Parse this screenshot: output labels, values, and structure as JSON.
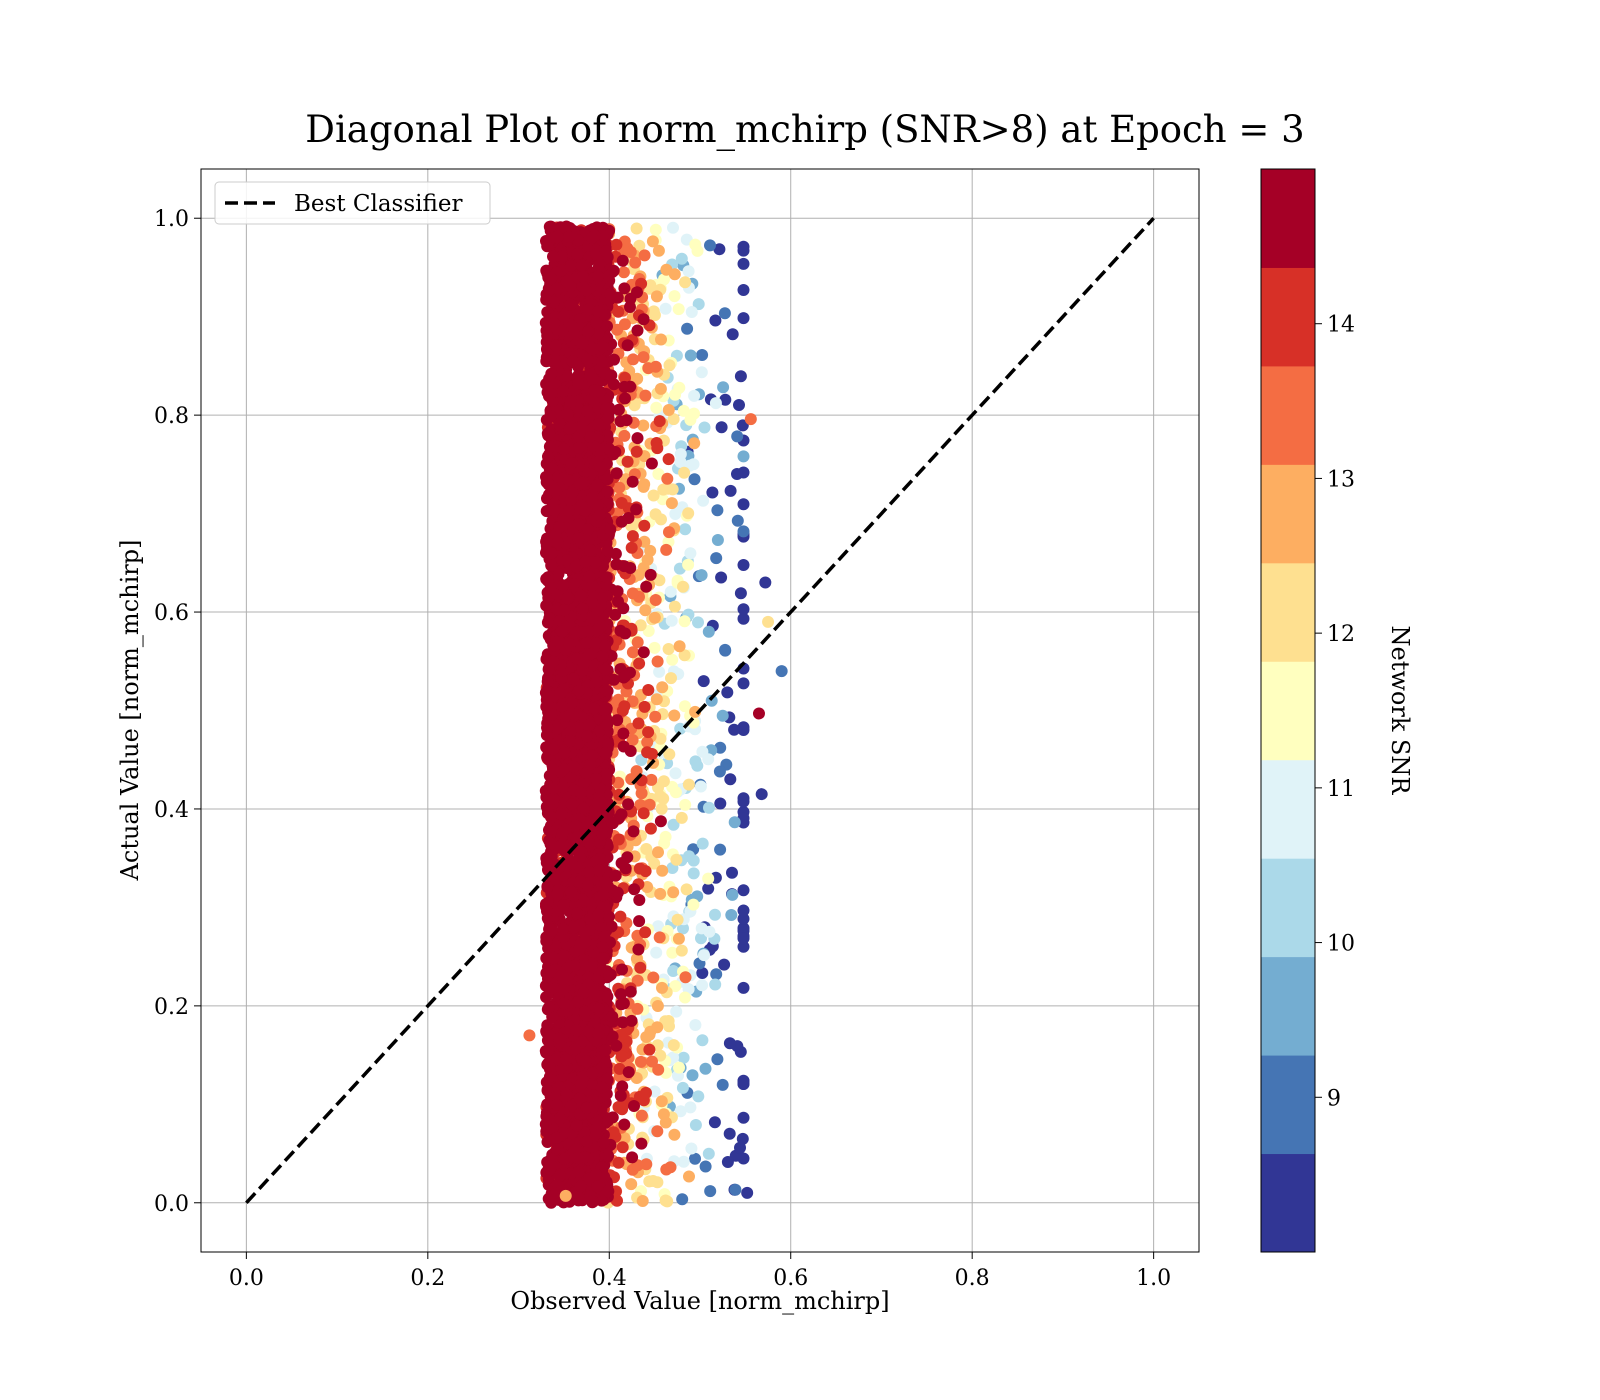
{
  "chart_data": {
    "type": "scatter",
    "title": "Diagonal Plot of norm_mchirp (SNR>8) at Epoch = 3",
    "xlabel": "Observed Value [norm_mchirp]",
    "ylabel": "Actual Value [norm_mchirp]",
    "xlim": [
      -0.05,
      1.05
    ],
    "ylim": [
      -0.05,
      1.05
    ],
    "xticks": [
      "0.0",
      "0.2",
      "0.4",
      "0.6",
      "0.8",
      "1.0"
    ],
    "yticks": [
      "0.0",
      "0.2",
      "0.4",
      "0.6",
      "0.8",
      "1.0"
    ],
    "grid": true,
    "legend": {
      "position": "top-left",
      "entries": [
        "Best Classifier"
      ]
    },
    "reference_line": {
      "name": "Best Classifier",
      "style": "dashed",
      "color": "#000000",
      "x": [
        0.0,
        1.0
      ],
      "y": [
        0.0,
        1.0
      ]
    },
    "scatter": {
      "observed_range": [
        0.31,
        0.59
      ],
      "actual_range": [
        0.0,
        1.0
      ],
      "dense_core_observed": [
        0.33,
        0.4
      ],
      "notable_points": [
        {
          "x": 0.59,
          "y": 0.54,
          "snr": 9.2
        },
        {
          "x": 0.572,
          "y": 0.63,
          "snr": 8.2
        },
        {
          "x": 0.568,
          "y": 0.415,
          "snr": 8.2
        },
        {
          "x": 0.552,
          "y": 0.01,
          "snr": 8.2
        },
        {
          "x": 0.565,
          "y": 0.497,
          "snr": 14.6
        },
        {
          "x": 0.556,
          "y": 0.796,
          "snr": 13.3
        },
        {
          "x": 0.575,
          "y": 0.59,
          "snr": 12.4
        },
        {
          "x": 0.352,
          "y": 0.007,
          "snr": 12.6
        },
        {
          "x": 0.312,
          "y": 0.17,
          "snr": 13.3
        }
      ]
    },
    "colorbar": {
      "label": "Network SNR",
      "range": [
        8,
        15
      ],
      "ticks": [
        "9",
        "10",
        "11",
        "12",
        "13",
        "14"
      ],
      "colors": [
        "#313695",
        "#4575b4",
        "#74add1",
        "#abd9e9",
        "#e0f3f8",
        "#ffffbf",
        "#fee090",
        "#fdae61",
        "#f46d43",
        "#d73027",
        "#a50026"
      ]
    }
  }
}
